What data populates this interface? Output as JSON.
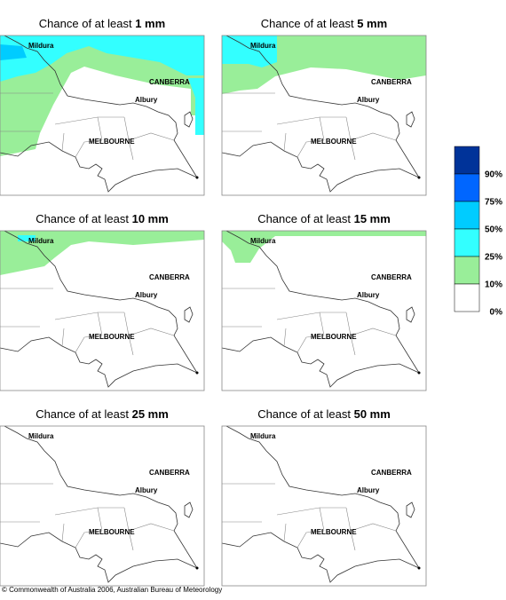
{
  "panels": [
    {
      "title": "Chance of at least",
      "amount": "1 mm"
    },
    {
      "title": "Chance of at least",
      "amount": "5 mm"
    },
    {
      "title": "Chance of at least",
      "amount": "10 mm"
    },
    {
      "title": "Chance of at least",
      "amount": "15 mm"
    },
    {
      "title": "Chance of at least",
      "amount": "25 mm"
    },
    {
      "title": "Chance of at least",
      "amount": "50 mm"
    }
  ],
  "places": {
    "mildura": "Mildura",
    "canberra": "CANBERRA",
    "albury": "Albury",
    "melbourne": "MELBOURNE"
  },
  "legend": {
    "labels": [
      "90%",
      "75%",
      "50%",
      "25%",
      "10%",
      "0%"
    ]
  },
  "footer": "© Commonwealth of Australia 2006, Australian Bureau of Meteorology"
}
